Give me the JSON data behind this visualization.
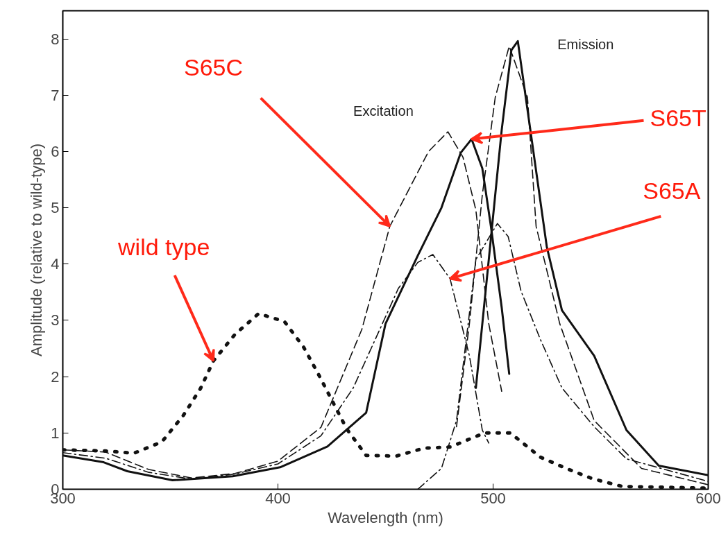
{
  "chart_data": {
    "type": "line",
    "xlabel": "Wavelength (nm)",
    "ylabel": "Amplitude (relative to wild-type)",
    "xlim": [
      300,
      600
    ],
    "ylim": [
      0,
      8.5
    ],
    "xticks": [
      300,
      400,
      500,
      600
    ],
    "yticks": [
      0,
      1,
      2,
      3,
      4,
      5,
      6,
      7,
      8
    ],
    "grid": false,
    "series": [
      {
        "color": "#111111",
        "line_style": "dotted",
        "x": [
          300,
          320,
          333,
          346,
          356,
          364,
          370,
          380,
          391,
          403,
          412,
          419,
          432,
          441,
          455,
          468,
          480,
          496,
          508,
          522,
          534,
          546,
          560,
          600
        ],
        "values": [
          0.7,
          0.68,
          0.64,
          0.84,
          1.31,
          1.79,
          2.28,
          2.75,
          3.12,
          2.98,
          2.52,
          2.03,
          1.07,
          0.6,
          0.59,
          0.73,
          0.75,
          1.0,
          1.0,
          0.57,
          0.37,
          0.19,
          0.05,
          0.02
        ]
      },
      {
        "color": "#111111",
        "line_style": "solid",
        "x": [
          300,
          319,
          330,
          351,
          379,
          401,
          423,
          441,
          450,
          465,
          476,
          485,
          490,
          495,
          499,
          504,
          507.5
        ],
        "values": [
          0.6,
          0.48,
          0.32,
          0.16,
          0.23,
          0.39,
          0.76,
          1.36,
          2.94,
          4.15,
          5.0,
          5.98,
          6.22,
          5.7,
          4.67,
          3.23,
          2.05
        ]
      },
      {
        "color": "#111111",
        "line_style": "solid",
        "x": [
          492,
          498,
          504,
          508.5,
          511.5,
          525,
          532,
          547,
          562,
          577,
          600
        ],
        "values": [
          1.8,
          4.08,
          6.38,
          7.8,
          7.96,
          4.3,
          3.18,
          2.37,
          1.05,
          0.42,
          0.25
        ]
      },
      {
        "color": "#111111",
        "line_style": "dashed",
        "x": [
          300,
          320,
          340,
          360,
          380,
          400,
          420,
          439,
          452,
          470,
          479,
          486,
          492,
          498,
          504
        ],
        "values": [
          0.7,
          0.66,
          0.35,
          0.2,
          0.28,
          0.5,
          1.1,
          2.84,
          4.67,
          6.0,
          6.35,
          5.9,
          4.96,
          2.94,
          1.74
        ]
      },
      {
        "color": "#111111",
        "line_style": "dashed",
        "x": [
          483,
          489,
          495,
          501,
          507.5,
          516,
          520,
          531,
          547,
          569,
          600
        ],
        "values": [
          1.11,
          2.94,
          5.23,
          6.96,
          7.87,
          6.96,
          4.67,
          2.94,
          1.22,
          0.37,
          0.08
        ]
      },
      {
        "color": "#111111",
        "line_style": "dashdot",
        "x": [
          300,
          320,
          340,
          360,
          380,
          400,
          420,
          435,
          456,
          465,
          472,
          480,
          489,
          495,
          498
        ],
        "values": [
          0.65,
          0.55,
          0.3,
          0.18,
          0.27,
          0.45,
          0.95,
          1.8,
          3.57,
          4.03,
          4.17,
          3.74,
          2.37,
          1.05,
          0.82
        ]
      },
      {
        "color": "#111111",
        "line_style": "dashdot",
        "x": [
          465,
          476,
          483,
          492,
          502,
          507,
          513,
          522,
          532,
          547,
          562,
          600
        ],
        "values": [
          0.0,
          0.37,
          1.22,
          4.08,
          4.72,
          4.49,
          3.52,
          2.66,
          1.8,
          1.11,
          0.54,
          0.14
        ]
      }
    ],
    "annotations": [
      "Excitation",
      "Emission",
      {
        "text": "S65C",
        "x": 452,
        "y": 4.67
      },
      {
        "text": "S65T",
        "x": 490,
        "y": 6.22
      },
      {
        "text": "S65A",
        "x": 480,
        "y": 3.74
      },
      {
        "text": "wild type",
        "x": 370,
        "y": 2.28
      }
    ]
  }
}
